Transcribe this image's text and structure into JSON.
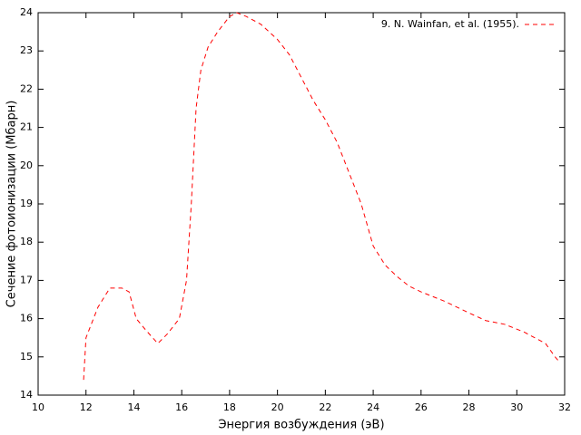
{
  "chart_data": {
    "type": "line",
    "xlabel": "Энергия возбуждения (эВ)",
    "ylabel": "Сечение фотоионизации (Мбарн)",
    "x": [
      11.9,
      12.0,
      12.5,
      13.0,
      13.5,
      13.8,
      14.1,
      14.5,
      15.0,
      15.4,
      15.9,
      16.2,
      16.4,
      16.6,
      16.8,
      17.1,
      17.5,
      18.0,
      18.3,
      18.7,
      19.3,
      20.0,
      20.5,
      21.0,
      21.5,
      22.0,
      22.5,
      23.0,
      23.5,
      24.0,
      24.5,
      25.0,
      25.5,
      26.0,
      27.0,
      28.0,
      28.7,
      29.5,
      30.3,
      31.2,
      31.6,
      31.8
    ],
    "series": [
      {
        "name": "9. N. Wainfan, et al. (1955).",
        "color": "#ff0000",
        "values": [
          14.4,
          15.5,
          16.3,
          16.8,
          16.8,
          16.7,
          16.0,
          15.7,
          15.35,
          15.6,
          16.0,
          17.0,
          19.0,
          21.5,
          22.5,
          23.1,
          23.5,
          23.9,
          24.0,
          23.9,
          23.7,
          23.3,
          22.9,
          22.3,
          21.7,
          21.2,
          20.6,
          19.8,
          19.0,
          17.9,
          17.4,
          17.1,
          16.85,
          16.7,
          16.45,
          16.15,
          15.95,
          15.85,
          15.65,
          15.35,
          15.0,
          14.85
        ]
      }
    ],
    "xlim": [
      10,
      32
    ],
    "xticks": [
      10,
      12,
      14,
      16,
      18,
      20,
      22,
      24,
      26,
      28,
      30,
      32
    ],
    "ylim": [
      14,
      24
    ],
    "yticks": [
      14,
      15,
      16,
      17,
      18,
      19,
      20,
      21,
      22,
      23,
      24
    ],
    "grid": false,
    "legend": "top-right",
    "dashed": true
  }
}
